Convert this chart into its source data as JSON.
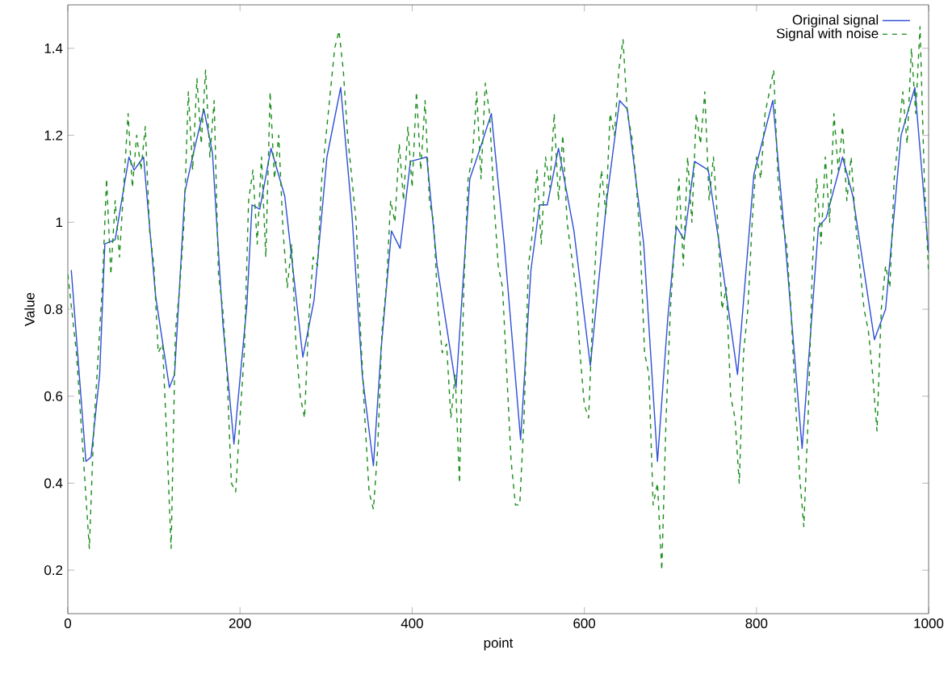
{
  "chart_data": {
    "type": "line",
    "xlabel": "point",
    "ylabel": "Value",
    "xlim": [
      0,
      1000
    ],
    "ylim": [
      0.1,
      1.5
    ],
    "xticks": [
      0,
      200,
      400,
      600,
      800,
      1000
    ],
    "yticks": [
      0.2,
      0.4,
      0.6,
      0.8,
      1,
      1.2,
      1.4
    ],
    "grid": false,
    "legend": "top right",
    "series": [
      {
        "name": "Original signal",
        "color": "#2f4fd6",
        "line_style": "solid",
        "x": [
          4,
          21,
          27,
          37,
          43,
          55,
          71,
          77,
          88,
          102,
          118,
          124,
          136,
          146,
          158,
          168,
          180,
          193,
          208,
          214,
          223,
          236,
          252,
          273,
          286,
          301,
          317,
          330,
          342,
          355,
          364,
          376,
          386,
          398,
          417,
          429,
          451,
          467,
          479,
          492,
          507,
          526,
          538,
          548,
          557,
          570,
          588,
          607,
          626,
          641,
          650,
          669,
          685,
          697,
          707,
          716,
          728,
          744,
          756,
          778,
          797,
          819,
          834,
          853,
          872,
          881,
          900,
          912,
          937,
          950,
          968,
          984,
          1000
        ],
        "values": [
          0.89,
          0.45,
          0.46,
          0.65,
          0.95,
          0.96,
          1.15,
          1.12,
          1.15,
          0.83,
          0.62,
          0.65,
          1.07,
          1.16,
          1.26,
          1.16,
          0.77,
          0.49,
          0.81,
          1.04,
          1.03,
          1.17,
          1.06,
          0.69,
          0.82,
          1.15,
          1.31,
          1.02,
          0.65,
          0.44,
          0.71,
          0.98,
          0.94,
          1.14,
          1.15,
          0.9,
          0.62,
          1.1,
          1.17,
          1.25,
          0.95,
          0.5,
          0.89,
          1.04,
          1.04,
          1.17,
          0.98,
          0.67,
          1.05,
          1.28,
          1.26,
          0.95,
          0.45,
          0.78,
          0.99,
          0.96,
          1.14,
          1.12,
          0.96,
          0.65,
          1.11,
          1.28,
          0.94,
          0.48,
          0.99,
          1.01,
          1.15,
          1.06,
          0.73,
          0.8,
          1.2,
          1.31,
          0.93
        ]
      },
      {
        "name": "Signal with noise",
        "color": "#1a8c1a",
        "line_style": "dashed",
        "x": [
          0,
          10,
          20,
          25,
          30,
          40,
          45,
          50,
          55,
          60,
          70,
          75,
          80,
          85,
          90,
          95,
          100,
          105,
          110,
          115,
          120,
          125,
          130,
          135,
          140,
          145,
          150,
          155,
          160,
          165,
          170,
          175,
          180,
          185,
          190,
          195,
          200,
          205,
          210,
          215,
          220,
          225,
          230,
          235,
          240,
          245,
          250,
          255,
          260,
          265,
          270,
          275,
          280,
          285,
          290,
          295,
          300,
          305,
          310,
          315,
          320,
          325,
          330,
          335,
          340,
          345,
          350,
          355,
          360,
          365,
          370,
          375,
          380,
          385,
          390,
          395,
          400,
          405,
          410,
          415,
          420,
          425,
          430,
          435,
          440,
          445,
          450,
          455,
          460,
          465,
          470,
          475,
          480,
          485,
          490,
          495,
          500,
          505,
          510,
          515,
          520,
          525,
          530,
          535,
          540,
          545,
          550,
          555,
          560,
          565,
          570,
          575,
          580,
          590,
          595,
          600,
          605,
          610,
          615,
          620,
          625,
          630,
          635,
          640,
          645,
          650,
          655,
          660,
          665,
          670,
          675,
          680,
          685,
          690,
          695,
          700,
          705,
          710,
          715,
          720,
          725,
          730,
          735,
          740,
          745,
          750,
          755,
          760,
          765,
          770,
          775,
          780,
          785,
          790,
          795,
          800,
          805,
          810,
          815,
          820,
          825,
          830,
          835,
          840,
          845,
          850,
          855,
          860,
          865,
          870,
          875,
          880,
          885,
          890,
          895,
          900,
          905,
          910,
          915,
          920,
          925,
          930,
          935,
          940,
          945,
          950,
          955,
          960,
          965,
          970,
          975,
          980,
          985,
          990,
          995,
          1000
        ],
        "values": [
          0.88,
          0.7,
          0.4,
          0.25,
          0.52,
          0.85,
          1.1,
          0.88,
          1.05,
          0.92,
          1.25,
          1.08,
          1.2,
          1.12,
          1.22,
          0.98,
          0.9,
          0.7,
          0.72,
          0.5,
          0.25,
          0.75,
          0.85,
          1.0,
          1.3,
          1.12,
          1.33,
          1.18,
          1.35,
          1.15,
          1.28,
          0.88,
          0.8,
          0.65,
          0.4,
          0.38,
          0.55,
          0.7,
          1.05,
          1.12,
          0.95,
          1.15,
          0.92,
          1.3,
          1.1,
          1.2,
          0.98,
          0.85,
          0.95,
          0.72,
          0.6,
          0.55,
          0.78,
          0.92,
          0.9,
          1.1,
          1.2,
          1.3,
          1.4,
          1.44,
          1.35,
          1.2,
          1.1,
          1.0,
          0.75,
          0.55,
          0.38,
          0.34,
          0.48,
          0.75,
          0.85,
          1.05,
          1.0,
          1.18,
          1.05,
          1.22,
          1.08,
          1.3,
          1.12,
          1.28,
          1.05,
          1.0,
          0.8,
          0.7,
          0.72,
          0.55,
          0.65,
          0.4,
          0.85,
          1.1,
          1.15,
          1.3,
          1.1,
          1.32,
          1.25,
          1.05,
          0.9,
          0.85,
          0.65,
          0.45,
          0.35,
          0.35,
          0.55,
          0.9,
          0.98,
          1.12,
          0.95,
          1.15,
          1.08,
          1.25,
          1.05,
          1.2,
          1.0,
          0.85,
          0.7,
          0.58,
          0.55,
          0.8,
          1.0,
          1.12,
          1.02,
          1.25,
          1.2,
          1.35,
          1.42,
          1.25,
          1.2,
          1.1,
          0.95,
          0.7,
          0.65,
          0.35,
          0.4,
          0.2,
          0.55,
          0.8,
          0.95,
          1.1,
          0.9,
          1.15,
          1.0,
          1.25,
          1.18,
          1.3,
          1.05,
          1.15,
          1.0,
          0.8,
          0.85,
          0.6,
          0.55,
          0.4,
          0.7,
          0.8,
          1.0,
          1.15,
          1.1,
          1.25,
          1.3,
          1.35,
          1.1,
          1.0,
          0.95,
          0.8,
          0.6,
          0.42,
          0.3,
          0.55,
          0.9,
          1.1,
          0.95,
          1.15,
          1.0,
          1.25,
          1.12,
          1.22,
          1.05,
          1.15,
          1.0,
          0.9,
          0.8,
          0.75,
          0.65,
          0.52,
          0.8,
          0.9,
          0.85,
          1.1,
          1.2,
          1.3,
          1.18,
          1.4,
          1.25,
          1.45,
          1.1,
          0.88
        ]
      }
    ]
  }
}
